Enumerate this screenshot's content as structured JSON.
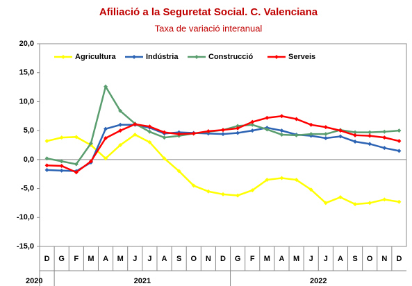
{
  "chart_data": {
    "type": "line",
    "title": "Afiliació a la Seguretat Social. C. Valenciana",
    "subtitle": "Taxa de variació interanual",
    "categories": [
      "D",
      "G",
      "F",
      "M",
      "A",
      "M",
      "J",
      "J",
      "A",
      "S",
      "O",
      "N",
      "D",
      "G",
      "F",
      "M",
      "A",
      "M",
      "J",
      "J",
      "A",
      "S",
      "O",
      "N",
      "D"
    ],
    "x_groups": [
      {
        "label": "2020",
        "count": 1
      },
      {
        "label": "2021",
        "count": 12
      },
      {
        "label": "2022",
        "count": 12
      }
    ],
    "series": [
      {
        "name": "Agricultura",
        "color": "#ffff00",
        "values": [
          3.2,
          3.8,
          3.9,
          2.5,
          0.2,
          2.5,
          4.3,
          3.0,
          0.2,
          -2.0,
          -4.5,
          -5.5,
          -6.0,
          -6.2,
          -5.3,
          -3.5,
          -3.2,
          -3.5,
          -5.2,
          -7.5,
          -6.5,
          -7.7,
          -7.5,
          -6.9,
          -7.3
        ]
      },
      {
        "name": "Indústria",
        "color": "#2e64b4",
        "values": [
          -1.8,
          -1.9,
          -2.0,
          -0.5,
          5.3,
          6.0,
          6.0,
          5.5,
          4.5,
          4.7,
          4.6,
          4.5,
          4.4,
          4.6,
          5.0,
          5.5,
          5.0,
          4.3,
          4.1,
          3.7,
          4.0,
          3.1,
          2.7,
          2.0,
          1.5
        ]
      },
      {
        "name": "Construcció",
        "color": "#5a9e6f",
        "values": [
          0.2,
          -0.3,
          -0.8,
          2.8,
          12.6,
          8.4,
          6.2,
          4.8,
          3.8,
          4.1,
          4.5,
          4.8,
          5.1,
          5.8,
          6.0,
          5.2,
          4.3,
          4.2,
          4.4,
          4.4,
          5.1,
          4.7,
          4.7,
          4.8,
          5.0
        ]
      },
      {
        "name": "Serveis",
        "color": "#ff0000",
        "values": [
          -1.0,
          -1.1,
          -2.2,
          -0.3,
          3.7,
          5.0,
          6.1,
          5.7,
          4.7,
          4.4,
          4.5,
          4.9,
          5.1,
          5.4,
          6.5,
          7.2,
          7.5,
          7.0,
          6.0,
          5.6,
          5.0,
          4.2,
          4.1,
          3.8,
          3.2
        ]
      }
    ],
    "ylim": [
      -15,
      20
    ],
    "yticks": [
      {
        "value": -15,
        "label": "-15,0"
      },
      {
        "value": -10,
        "label": "-10,0"
      },
      {
        "value": -5,
        "label": "-5,0"
      },
      {
        "value": 0,
        "label": "0,0"
      },
      {
        "value": 5,
        "label": "5,0"
      },
      {
        "value": 10,
        "label": "10,0"
      },
      {
        "value": 15,
        "label": "15,0"
      },
      {
        "value": 20,
        "label": "20,0"
      }
    ],
    "grid": false
  }
}
